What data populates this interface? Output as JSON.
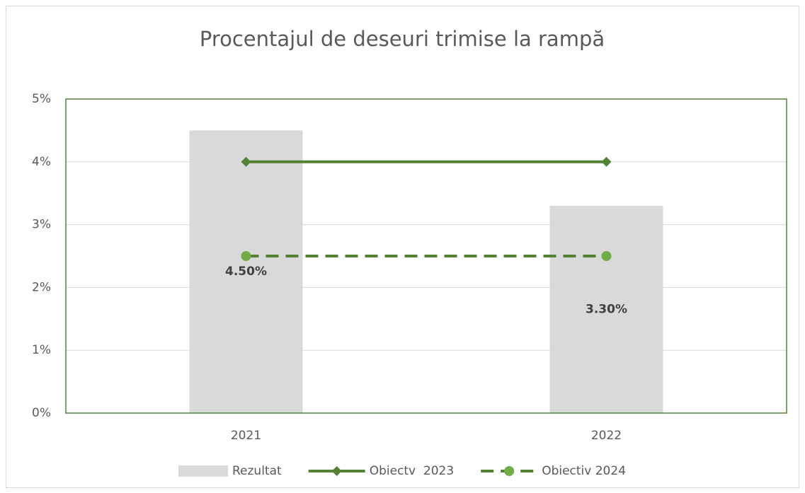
{
  "chart_data": {
    "type": "bar",
    "title": "Procentajul de deseuri trimise la rampă",
    "categories": [
      "2021",
      "2022"
    ],
    "series": [
      {
        "name": "Rezultat",
        "type": "bar",
        "color": "#d9d9d9",
        "values": [
          4.5,
          3.3
        ],
        "value_labels": [
          "4.50%",
          "3.30%"
        ]
      },
      {
        "name": "Obiectv  2023",
        "type": "line",
        "color": "#548235",
        "marker": "diamond",
        "marker_color": "#548235",
        "dashed": false,
        "values": [
          4,
          4
        ]
      },
      {
        "name": "Obiectiv 2024",
        "type": "line",
        "color": "#548235",
        "marker": "circle",
        "marker_color": "#70ad47",
        "dashed": true,
        "values": [
          2.5,
          2.5
        ]
      }
    ],
    "ylim": [
      0,
      5
    ],
    "yticks": [
      {
        "value": 0,
        "label": "0%"
      },
      {
        "value": 1,
        "label": "1%"
      },
      {
        "value": 2,
        "label": "2%"
      },
      {
        "value": 3,
        "label": "3%"
      },
      {
        "value": 4,
        "label": "4%"
      },
      {
        "value": 5,
        "label": "5%"
      }
    ],
    "grid": true,
    "legend": "bottom"
  }
}
